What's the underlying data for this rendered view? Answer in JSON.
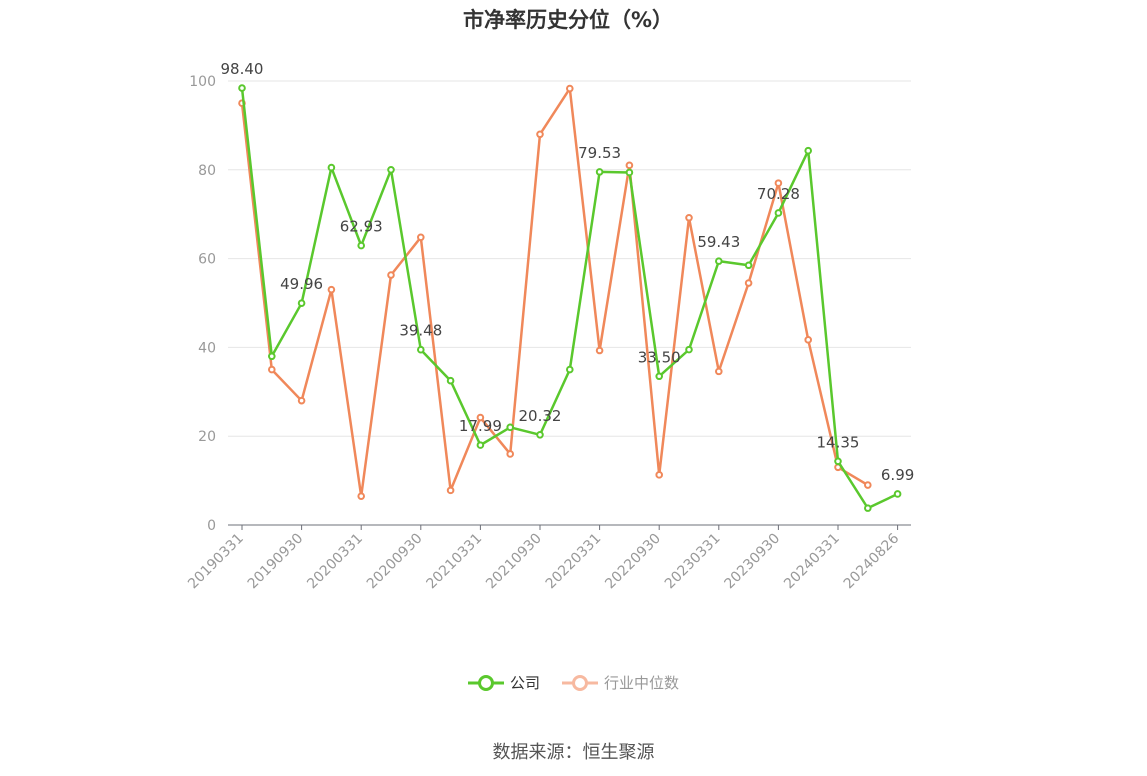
{
  "chart_data": {
    "type": "line",
    "title": "市净率历史分位（%）",
    "xlabel": "",
    "ylabel": "",
    "ylim": [
      0,
      100
    ],
    "yticks": [
      0,
      20,
      40,
      60,
      80,
      100
    ],
    "grid": true,
    "legend_position": "bottom",
    "x": [
      "20190331",
      "20190630",
      "20190930",
      "20191231",
      "20200331",
      "20200630",
      "20200930",
      "20201231",
      "20210331",
      "20210630",
      "20210930",
      "20211231",
      "20220331",
      "20220630",
      "20220930",
      "20221231",
      "20230331",
      "20230630",
      "20230930",
      "20231231",
      "20240331",
      "20240630",
      "20240826"
    ],
    "x_tick_labels": [
      "20190331",
      "20190930",
      "20200331",
      "20200930",
      "20210331",
      "20210930",
      "20220331",
      "20220930",
      "20230331",
      "20230930",
      "20240331",
      "20240826"
    ],
    "series": [
      {
        "name": "公司",
        "color": "#5ac82d",
        "values": [
          98.4,
          38.0,
          49.96,
          80.5,
          62.93,
          80.0,
          39.48,
          32.5,
          17.99,
          22.0,
          20.32,
          35.0,
          79.53,
          79.4,
          33.5,
          39.5,
          59.43,
          58.5,
          70.28,
          84.3,
          14.35,
          3.8,
          6.99
        ],
        "labels": {
          "0": "98.40",
          "2": "49.96",
          "4": "62.93",
          "6": "39.48",
          "8": "17.99",
          "10": "20.32",
          "12": "79.53",
          "14": "33.50",
          "16": "59.43",
          "18": "70.28",
          "20": "14.35",
          "22": "6.99"
        }
      },
      {
        "name": "行业中位数",
        "color": "#f0885a",
        "values": [
          95.0,
          35.0,
          28.0,
          53.0,
          6.5,
          56.3,
          64.8,
          7.8,
          24.2,
          16.0,
          88.0,
          98.3,
          39.3,
          81.0,
          11.3,
          69.2,
          34.6,
          54.5,
          77.0,
          41.7,
          13.0,
          9.0,
          null
        ]
      }
    ]
  },
  "legend": [
    {
      "label": "公司",
      "color": "#5ac82d",
      "text_color": "#333333"
    },
    {
      "label": "行业中位数",
      "color": "#f7b9a0",
      "text_color": "#999999"
    }
  ],
  "source_text": "数据来源：恒生聚源"
}
